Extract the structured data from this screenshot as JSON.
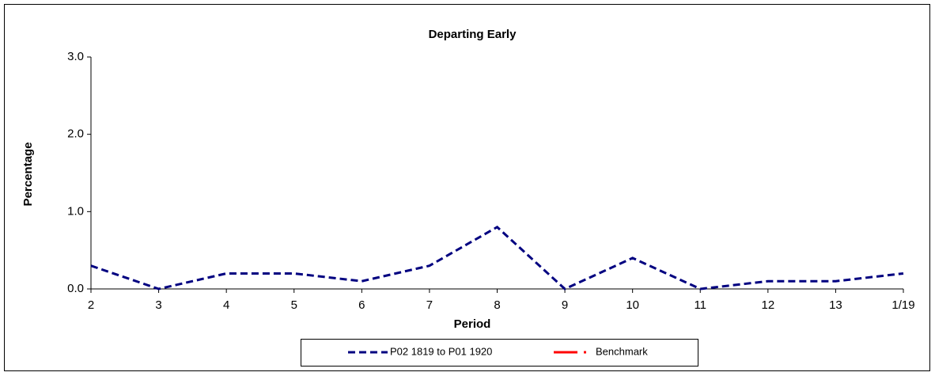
{
  "chart_data": {
    "type": "line",
    "title": "Departing Early",
    "x_label": "Period",
    "y_label": "Percentage",
    "categories": [
      "2",
      "3",
      "4",
      "5",
      "6",
      "7",
      "8",
      "9",
      "10",
      "11",
      "12",
      "13",
      "1/19"
    ],
    "series": [
      {
        "name": "P02 1819 to P01 1920",
        "color": "#000080",
        "dashed": true,
        "values": [
          0.3,
          0,
          0.2,
          0.2,
          0.1,
          0.3,
          0.8,
          0,
          0.4,
          0,
          0.1,
          0.1,
          0.2
        ]
      },
      {
        "name": "Benchmark",
        "color": "#ff0000",
        "dashed": false,
        "values": [
          null,
          null,
          null,
          null,
          null,
          null,
          null,
          null,
          null,
          null,
          null,
          null,
          null
        ]
      }
    ],
    "ylim": [
      0,
      3
    ],
    "yticks": [
      {
        "value": 0,
        "label": "0.0"
      },
      {
        "value": 1,
        "label": "1.0"
      },
      {
        "value": 2,
        "label": "2.0"
      },
      {
        "value": 3,
        "label": "3.0"
      }
    ],
    "grid": false,
    "legend": "bottom"
  }
}
